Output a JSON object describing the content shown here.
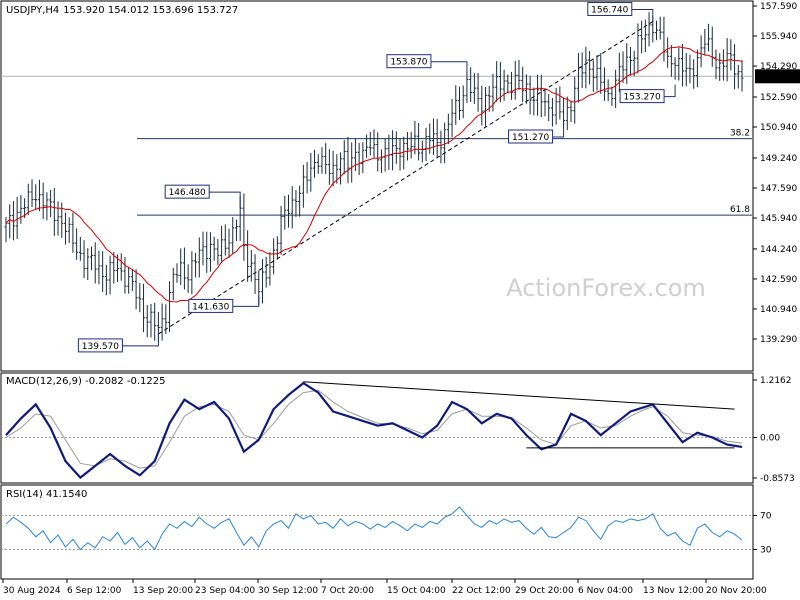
{
  "chart_data": {
    "type": "candlestick",
    "header": {
      "symbol": "USDJPY,H4",
      "ohlc": "153.920 154.012 153.696 153.727"
    },
    "watermark": "ActionForex.com",
    "last_price": "153.727",
    "price_ticks": [
      "157.590",
      "155.940",
      "154.290",
      "152.590",
      "150.940",
      "149.240",
      "147.590",
      "145.940",
      "144.240",
      "142.590",
      "140.940",
      "139.290"
    ],
    "x_ticks": [
      "30 Aug 2024",
      "6 Sep 12:00",
      "13 Sep 20:00",
      "23 Sep 04:00",
      "30 Sep 12:00",
      "7 Oct 20:00",
      "15 Oct 04:00",
      "22 Oct 12:00",
      "29 Oct 20:00",
      "6 Nov 04:00",
      "13 Nov 12:00",
      "20 Nov 20:00"
    ],
    "annotations": [
      "156.740",
      "153.870",
      "153.270",
      "151.270",
      "146.480",
      "141.630",
      "139.570"
    ],
    "fib_levels": [
      {
        "label": "38.2",
        "price": 150.3
      },
      {
        "label": "61.8",
        "price": 146.1
      }
    ],
    "price_path": [
      [
        0,
        145.4
      ],
      [
        3,
        146.3
      ],
      [
        6,
        146.8
      ],
      [
        8,
        147.3
      ],
      [
        10,
        146.9
      ],
      [
        12,
        146.4
      ],
      [
        15,
        145.8
      ],
      [
        18,
        144.6
      ],
      [
        21,
        143.6
      ],
      [
        24,
        143.4
      ],
      [
        27,
        142.8
      ],
      [
        30,
        143.2
      ],
      [
        33,
        142.5
      ],
      [
        35,
        141.7
      ],
      [
        37,
        140.8
      ],
      [
        39,
        140.3
      ],
      [
        41,
        139.8
      ],
      [
        43,
        140.8
      ],
      [
        45,
        142.6
      ],
      [
        47,
        143.1
      ],
      [
        49,
        142.9
      ],
      [
        51,
        143.6
      ],
      [
        53,
        144.2
      ],
      [
        55,
        144.4
      ],
      [
        57,
        143.9
      ],
      [
        59,
        144.6
      ],
      [
        61,
        145.2
      ],
      [
        63,
        146.1
      ],
      [
        64,
        144.2
      ],
      [
        66,
        143.4
      ],
      [
        68,
        141.9
      ],
      [
        70,
        142.9
      ],
      [
        72,
        144.1
      ],
      [
        74,
        145.6
      ],
      [
        76,
        146.6
      ],
      [
        78,
        147.1
      ],
      [
        80,
        147.6
      ],
      [
        82,
        148.8
      ],
      [
        84,
        149.2
      ],
      [
        86,
        148.6
      ],
      [
        88,
        148.7
      ],
      [
        90,
        149.3
      ],
      [
        92,
        148.8
      ],
      [
        94,
        149.6
      ],
      [
        96,
        149.3
      ],
      [
        98,
        149.9
      ],
      [
        100,
        149.6
      ],
      [
        102,
        149.3
      ],
      [
        104,
        149.7
      ],
      [
        106,
        149.9
      ],
      [
        108,
        149.6
      ],
      [
        110,
        150.1
      ],
      [
        112,
        149.9
      ],
      [
        114,
        150.3
      ],
      [
        116,
        150.1
      ],
      [
        118,
        150.6
      ],
      [
        120,
        151.6
      ],
      [
        122,
        152.3
      ],
      [
        124,
        153.4
      ],
      [
        126,
        152.6
      ],
      [
        128,
        152.3
      ],
      [
        130,
        152.8
      ],
      [
        132,
        153.2
      ],
      [
        134,
        153.6
      ],
      [
        136,
        153.1
      ],
      [
        138,
        153.4
      ],
      [
        140,
        153.2
      ],
      [
        142,
        152.3
      ],
      [
        144,
        152.6
      ],
      [
        146,
        152.1
      ],
      [
        148,
        151.8
      ],
      [
        150,
        151.5
      ],
      [
        152,
        152.3
      ],
      [
        154,
        153.7
      ],
      [
        156,
        154.5
      ],
      [
        158,
        154.1
      ],
      [
        160,
        153.3
      ],
      [
        162,
        152.6
      ],
      [
        164,
        153.5
      ],
      [
        166,
        154.2
      ],
      [
        168,
        154.8
      ],
      [
        170,
        155.6
      ],
      [
        172,
        155.9
      ],
      [
        174,
        156.7
      ],
      [
        176,
        155.9
      ],
      [
        178,
        154.4
      ],
      [
        180,
        154.8
      ],
      [
        182,
        154.1
      ],
      [
        184,
        153.8
      ],
      [
        186,
        154.8
      ],
      [
        188,
        155.6
      ],
      [
        190,
        154.9
      ],
      [
        192,
        154.3
      ],
      [
        194,
        154.7
      ],
      [
        196,
        154.3
      ],
      [
        198,
        153.7
      ]
    ],
    "macd": {
      "label": "MACD(12,26,9) -0.2082 -0.1225",
      "ticks": [
        "1.2162",
        "0.00",
        "-0.8573"
      ],
      "main": [
        [
          0,
          0.05
        ],
        [
          4,
          0.4
        ],
        [
          8,
          0.7
        ],
        [
          12,
          0.2
        ],
        [
          16,
          -0.5
        ],
        [
          20,
          -0.85
        ],
        [
          24,
          -0.6
        ],
        [
          28,
          -0.35
        ],
        [
          32,
          -0.6
        ],
        [
          36,
          -0.8
        ],
        [
          40,
          -0.5
        ],
        [
          44,
          0.3
        ],
        [
          48,
          0.8
        ],
        [
          52,
          0.6
        ],
        [
          56,
          0.75
        ],
        [
          60,
          0.4
        ],
        [
          64,
          -0.3
        ],
        [
          68,
          -0.05
        ],
        [
          72,
          0.6
        ],
        [
          76,
          0.9
        ],
        [
          80,
          1.15
        ],
        [
          84,
          0.95
        ],
        [
          88,
          0.55
        ],
        [
          92,
          0.45
        ],
        [
          96,
          0.35
        ],
        [
          100,
          0.25
        ],
        [
          104,
          0.3
        ],
        [
          108,
          0.15
        ],
        [
          112,
          0.0
        ],
        [
          116,
          0.25
        ],
        [
          120,
          0.75
        ],
        [
          124,
          0.6
        ],
        [
          128,
          0.3
        ],
        [
          132,
          0.5
        ],
        [
          136,
          0.4
        ],
        [
          140,
          0.05
        ],
        [
          144,
          -0.25
        ],
        [
          148,
          -0.15
        ],
        [
          152,
          0.5
        ],
        [
          156,
          0.35
        ],
        [
          160,
          0.05
        ],
        [
          164,
          0.3
        ],
        [
          168,
          0.55
        ],
        [
          172,
          0.65
        ],
        [
          174,
          0.7
        ],
        [
          178,
          0.3
        ],
        [
          182,
          -0.1
        ],
        [
          186,
          0.1
        ],
        [
          190,
          0.0
        ],
        [
          194,
          -0.15
        ],
        [
          198,
          -0.2
        ]
      ],
      "signal": [
        [
          0,
          0.0
        ],
        [
          4,
          0.2
        ],
        [
          8,
          0.5
        ],
        [
          12,
          0.45
        ],
        [
          16,
          -0.05
        ],
        [
          20,
          -0.55
        ],
        [
          24,
          -0.6
        ],
        [
          28,
          -0.45
        ],
        [
          32,
          -0.5
        ],
        [
          36,
          -0.65
        ],
        [
          40,
          -0.6
        ],
        [
          44,
          -0.1
        ],
        [
          48,
          0.45
        ],
        [
          52,
          0.65
        ],
        [
          56,
          0.7
        ],
        [
          60,
          0.55
        ],
        [
          64,
          0.05
        ],
        [
          68,
          -0.05
        ],
        [
          72,
          0.3
        ],
        [
          76,
          0.7
        ],
        [
          80,
          0.95
        ],
        [
          84,
          1.0
        ],
        [
          88,
          0.75
        ],
        [
          92,
          0.55
        ],
        [
          96,
          0.42
        ],
        [
          100,
          0.3
        ],
        [
          104,
          0.28
        ],
        [
          108,
          0.2
        ],
        [
          112,
          0.08
        ],
        [
          116,
          0.15
        ],
        [
          120,
          0.5
        ],
        [
          124,
          0.6
        ],
        [
          128,
          0.45
        ],
        [
          132,
          0.45
        ],
        [
          136,
          0.42
        ],
        [
          140,
          0.2
        ],
        [
          144,
          -0.05
        ],
        [
          148,
          -0.15
        ],
        [
          152,
          0.25
        ],
        [
          156,
          0.35
        ],
        [
          160,
          0.2
        ],
        [
          164,
          0.25
        ],
        [
          168,
          0.45
        ],
        [
          172,
          0.6
        ],
        [
          174,
          0.65
        ],
        [
          178,
          0.45
        ],
        [
          182,
          0.1
        ],
        [
          186,
          0.05
        ],
        [
          190,
          0.02
        ],
        [
          194,
          -0.08
        ],
        [
          198,
          -0.12
        ]
      ]
    },
    "rsi": {
      "label": "RSI(14) 41.1540",
      "ticks": [
        "70",
        "30"
      ],
      "values": [
        [
          0,
          60
        ],
        [
          2,
          68
        ],
        [
          4,
          62
        ],
        [
          6,
          55
        ],
        [
          8,
          45
        ],
        [
          10,
          52
        ],
        [
          12,
          38
        ],
        [
          14,
          47
        ],
        [
          16,
          33
        ],
        [
          18,
          42
        ],
        [
          20,
          30
        ],
        [
          22,
          38
        ],
        [
          24,
          32
        ],
        [
          26,
          45
        ],
        [
          28,
          40
        ],
        [
          30,
          50
        ],
        [
          32,
          36
        ],
        [
          34,
          44
        ],
        [
          36,
          32
        ],
        [
          38,
          40
        ],
        [
          40,
          30
        ],
        [
          42,
          48
        ],
        [
          44,
          60
        ],
        [
          46,
          55
        ],
        [
          48,
          63
        ],
        [
          50,
          57
        ],
        [
          52,
          68
        ],
        [
          54,
          60
        ],
        [
          56,
          55
        ],
        [
          58,
          62
        ],
        [
          60,
          66
        ],
        [
          62,
          50
        ],
        [
          64,
          35
        ],
        [
          66,
          45
        ],
        [
          68,
          33
        ],
        [
          70,
          52
        ],
        [
          72,
          60
        ],
        [
          74,
          64
        ],
        [
          76,
          55
        ],
        [
          78,
          72
        ],
        [
          80,
          66
        ],
        [
          82,
          70
        ],
        [
          84,
          60
        ],
        [
          86,
          62
        ],
        [
          88,
          55
        ],
        [
          90,
          66
        ],
        [
          92,
          58
        ],
        [
          94,
          63
        ],
        [
          96,
          60
        ],
        [
          98,
          54
        ],
        [
          100,
          60
        ],
        [
          102,
          56
        ],
        [
          104,
          63
        ],
        [
          106,
          58
        ],
        [
          108,
          52
        ],
        [
          110,
          60
        ],
        [
          112,
          56
        ],
        [
          114,
          63
        ],
        [
          116,
          60
        ],
        [
          118,
          68
        ],
        [
          120,
          72
        ],
        [
          122,
          80
        ],
        [
          124,
          70
        ],
        [
          126,
          60
        ],
        [
          128,
          56
        ],
        [
          130,
          64
        ],
        [
          132,
          60
        ],
        [
          134,
          66
        ],
        [
          136,
          62
        ],
        [
          138,
          64
        ],
        [
          140,
          55
        ],
        [
          142,
          48
        ],
        [
          144,
          56
        ],
        [
          146,
          45
        ],
        [
          148,
          44
        ],
        [
          150,
          50
        ],
        [
          152,
          56
        ],
        [
          154,
          68
        ],
        [
          156,
          64
        ],
        [
          158,
          52
        ],
        [
          160,
          42
        ],
        [
          162,
          58
        ],
        [
          164,
          64
        ],
        [
          166,
          62
        ],
        [
          168,
          66
        ],
        [
          170,
          64
        ],
        [
          172,
          66
        ],
        [
          174,
          72
        ],
        [
          176,
          55
        ],
        [
          178,
          46
        ],
        [
          180,
          50
        ],
        [
          182,
          40
        ],
        [
          184,
          35
        ],
        [
          186,
          55
        ],
        [
          188,
          60
        ],
        [
          190,
          50
        ],
        [
          192,
          45
        ],
        [
          194,
          52
        ],
        [
          196,
          48
        ],
        [
          198,
          41
        ]
      ]
    }
  }
}
